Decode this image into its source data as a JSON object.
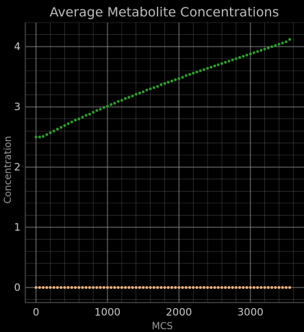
{
  "chart_data": {
    "type": "scatter",
    "title": "Average Metabolite Concentrations",
    "xlabel": "MCS",
    "ylabel": "Concentration",
    "xlim": [
      -150,
      3750
    ],
    "ylim": [
      -0.25,
      4.4
    ],
    "x_ticks": [
      0,
      1000,
      2000,
      3000
    ],
    "x_tick_labels": [
      "0",
      "1000",
      "2000",
      "3000"
    ],
    "y_ticks": [
      0,
      1,
      2,
      3,
      4
    ],
    "y_tick_labels": [
      "0",
      "1",
      "2",
      "3",
      "4"
    ],
    "grid": true,
    "series": [
      {
        "color": "#2f9e2f",
        "x": [
          0,
          50,
          100,
          150,
          200,
          250,
          300,
          350,
          400,
          450,
          500,
          550,
          600,
          650,
          700,
          750,
          800,
          850,
          900,
          950,
          1000,
          1050,
          1100,
          1150,
          1200,
          1250,
          1300,
          1350,
          1400,
          1450,
          1500,
          1550,
          1600,
          1650,
          1700,
          1750,
          1800,
          1850,
          1900,
          1950,
          2000,
          2050,
          2100,
          2150,
          2200,
          2250,
          2300,
          2350,
          2400,
          2450,
          2500,
          2550,
          2600,
          2650,
          2700,
          2750,
          2800,
          2850,
          2900,
          2950,
          3000,
          3050,
          3100,
          3150,
          3200,
          3250,
          3300,
          3350,
          3400,
          3450,
          3500,
          3550
        ],
        "y": [
          2.5,
          2.5,
          2.51,
          2.54,
          2.57,
          2.6,
          2.63,
          2.66,
          2.69,
          2.72,
          2.75,
          2.78,
          2.8,
          2.83,
          2.86,
          2.88,
          2.91,
          2.94,
          2.96,
          2.99,
          3.01,
          3.04,
          3.06,
          3.09,
          3.11,
          3.14,
          3.16,
          3.18,
          3.21,
          3.23,
          3.25,
          3.28,
          3.3,
          3.32,
          3.34,
          3.37,
          3.39,
          3.41,
          3.43,
          3.45,
          3.47,
          3.49,
          3.52,
          3.54,
          3.56,
          3.58,
          3.6,
          3.62,
          3.64,
          3.66,
          3.68,
          3.7,
          3.72,
          3.74,
          3.76,
          3.78,
          3.8,
          3.82,
          3.84,
          3.86,
          3.88,
          3.9,
          3.92,
          3.94,
          3.96,
          3.98,
          4.0,
          4.02,
          4.04,
          4.06,
          4.08,
          4.12
        ]
      },
      {
        "color": "#f2b27a",
        "x": [
          0,
          50,
          100,
          150,
          200,
          250,
          300,
          350,
          400,
          450,
          500,
          550,
          600,
          650,
          700,
          750,
          800,
          850,
          900,
          950,
          1000,
          1050,
          1100,
          1150,
          1200,
          1250,
          1300,
          1350,
          1400,
          1450,
          1500,
          1550,
          1600,
          1650,
          1700,
          1750,
          1800,
          1850,
          1900,
          1950,
          2000,
          2050,
          2100,
          2150,
          2200,
          2250,
          2300,
          2350,
          2400,
          2450,
          2500,
          2550,
          2600,
          2650,
          2700,
          2750,
          2800,
          2850,
          2900,
          2950,
          3000,
          3050,
          3100,
          3150,
          3200,
          3250,
          3300,
          3350,
          3400,
          3450,
          3500,
          3550
        ],
        "y": [
          0,
          0,
          0,
          0,
          0,
          0,
          0,
          0,
          0,
          0,
          0,
          0,
          0,
          0,
          0,
          0,
          0,
          0,
          0,
          0,
          0,
          0,
          0,
          0,
          0,
          0,
          0,
          0,
          0,
          0,
          0,
          0,
          0,
          0,
          0,
          0,
          0,
          0,
          0,
          0,
          0,
          0,
          0,
          0,
          0,
          0,
          0,
          0,
          0,
          0,
          0,
          0,
          0,
          0,
          0,
          0,
          0,
          0,
          0,
          0,
          0,
          0,
          0,
          0,
          0,
          0,
          0,
          0,
          0,
          0,
          0,
          0
        ]
      }
    ]
  },
  "colors": {
    "background": "#000000",
    "grid": "#9a9a9a",
    "axis_line": "#6a6a6a"
  }
}
